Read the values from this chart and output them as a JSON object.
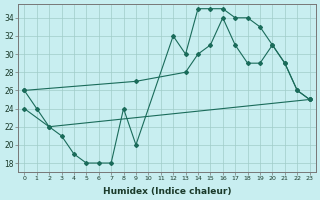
{
  "background_color": "#c8eef0",
  "grid_color": "#a0ccc8",
  "line_color": "#1a6b5a",
  "xlabel": "Humidex (Indice chaleur)",
  "ylabel_ticks": [
    18,
    20,
    22,
    24,
    26,
    28,
    30,
    32,
    34
  ],
  "xlim": [
    -0.5,
    23.5
  ],
  "ylim": [
    17,
    35.5
  ],
  "line1_x": [
    0,
    1,
    2,
    3,
    4,
    5,
    6,
    7,
    8,
    9,
    12,
    13,
    14,
    15,
    16,
    17,
    18,
    19,
    20,
    21,
    22,
    23
  ],
  "line1_y": [
    26,
    24,
    22,
    21,
    19,
    18,
    18,
    18,
    24,
    20,
    32,
    30,
    35,
    35,
    35,
    34,
    34,
    33,
    31,
    29,
    26,
    25
  ],
  "line2_x": [
    0,
    9,
    13,
    14,
    15,
    16,
    17,
    18,
    19,
    20,
    21,
    22,
    23
  ],
  "line2_y": [
    26,
    27,
    28,
    30,
    31,
    34,
    31,
    29,
    29,
    31,
    29,
    26,
    25
  ],
  "line3_x": [
    0,
    2,
    23
  ],
  "line3_y": [
    24,
    22,
    25
  ]
}
